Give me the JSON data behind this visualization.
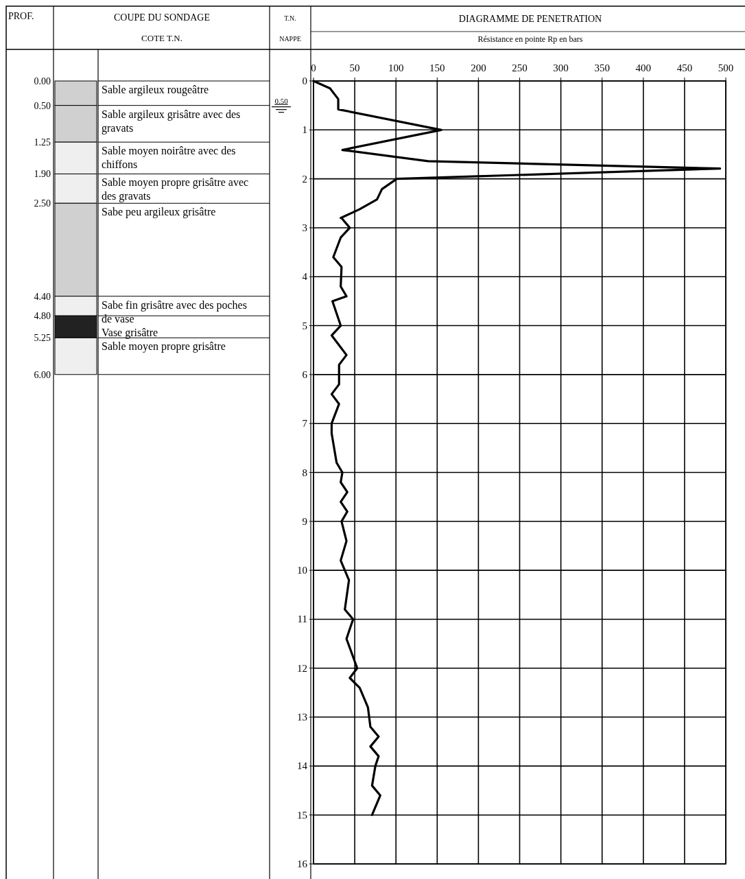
{
  "chart_data": [
    {
      "type": "bar",
      "stacked": true,
      "categories": [
        null
      ],
      "annotations": [
        "PROF.",
        "COUPE DU SONDAGE",
        "COTE T.N."
      ],
      "ylim": [
        16.41,
        0
      ],
      "yticks": [
        {
          "value": 0,
          "label": "0.00"
        },
        {
          "value": 0.5,
          "label": "0.50"
        },
        {
          "value": 1.25,
          "label": "1.25"
        },
        {
          "value": 1.9,
          "label": "1.90"
        },
        {
          "value": 2.5,
          "label": "2.50"
        },
        {
          "value": 4.4,
          "label": "4.40"
        },
        {
          "value": 4.8,
          "label": "4.80"
        },
        {
          "value": 5.25,
          "label": "5.25"
        },
        {
          "value": 6,
          "label": "6.00"
        }
      ],
      "series": [
        {
          "name": "Sable argileux rougeâtre",
          "color": "#d0d0d0",
          "values": [
            0.5
          ]
        },
        {
          "name": "Sable argileux grisâtre avec des gravats",
          "color": "#d0d0d0",
          "values": [
            0.75
          ]
        },
        {
          "name": "Sable moyen noirâtre avec des chiffons",
          "color": "#efefef",
          "values": [
            0.65
          ]
        },
        {
          "name": "Sable moyen propre grisâtre avec des gravats",
          "color": "#efefef",
          "values": [
            0.6
          ]
        },
        {
          "name": "Sabe peu argileux grisâtre",
          "color": "#d0d0d0",
          "values": [
            1.9
          ]
        },
        {
          "name": "Sabe fin grisâtre avec des poches de vase",
          "color": "#efefef",
          "values": [
            0.4
          ]
        },
        {
          "name": "Vase grisâtre",
          "color": "#222222",
          "values": [
            0.45
          ]
        },
        {
          "name": "Sable moyen propre grisâtre",
          "color": "#efefef",
          "values": [
            0.75
          ]
        }
      ]
    },
    {
      "type": "line",
      "title": "DIAGRAMME DE PENETRATION",
      "xlabel": "Résistance en pointe Rp en bars",
      "series": [
        {
          "color": "#000000",
          "x": [
            0,
            20,
            30,
            30,
            155,
            35,
            139,
            493,
            101,
            83,
            77,
            56,
            33,
            34,
            44,
            33,
            24,
            34,
            33,
            40,
            23,
            33,
            22,
            40,
            31,
            31,
            22,
            31,
            22,
            22,
            28,
            35,
            33,
            41,
            33,
            41,
            34,
            40,
            33,
            43,
            38,
            48,
            40,
            53,
            44,
            56,
            66,
            69,
            79,
            69,
            79,
            75,
            71,
            81,
            71
          ],
          "values": [
            0,
            0.15,
            0.37,
            0.58,
            1.0,
            1.41,
            1.64,
            1.79,
            2.0,
            2.21,
            2.42,
            2.62,
            2.8,
            2.8,
            3.0,
            3.2,
            3.6,
            3.8,
            4.2,
            4.4,
            4.5,
            5.0,
            5.2,
            5.6,
            5.8,
            6.2,
            6.4,
            6.6,
            7.0,
            7.2,
            7.8,
            8.0,
            8.2,
            8.4,
            8.6,
            8.8,
            9.0,
            9.4,
            9.8,
            10.2,
            10.8,
            11.0,
            11.4,
            12.0,
            12.2,
            12.4,
            12.8,
            13.2,
            13.4,
            13.6,
            13.8,
            14.0,
            14.4,
            14.6,
            15.0
          ]
        }
      ],
      "xlim": [
        0,
        500
      ],
      "xticks": [
        0,
        50,
        100,
        150,
        200,
        250,
        300,
        350,
        400,
        450,
        500
      ],
      "ylim": [
        16,
        0
      ],
      "yticks": [
        0,
        1,
        2,
        3,
        4,
        5,
        6,
        7,
        8,
        9,
        10,
        11,
        12,
        13,
        14,
        15,
        16
      ],
      "grid": true,
      "line_style": "solid",
      "marker": "none",
      "ref_lines": [
        {
          "axis": "y",
          "value": 0.5,
          "label": "0.50"
        }
      ],
      "annotations": [
        "T.N.",
        "NAPPE"
      ]
    }
  ]
}
